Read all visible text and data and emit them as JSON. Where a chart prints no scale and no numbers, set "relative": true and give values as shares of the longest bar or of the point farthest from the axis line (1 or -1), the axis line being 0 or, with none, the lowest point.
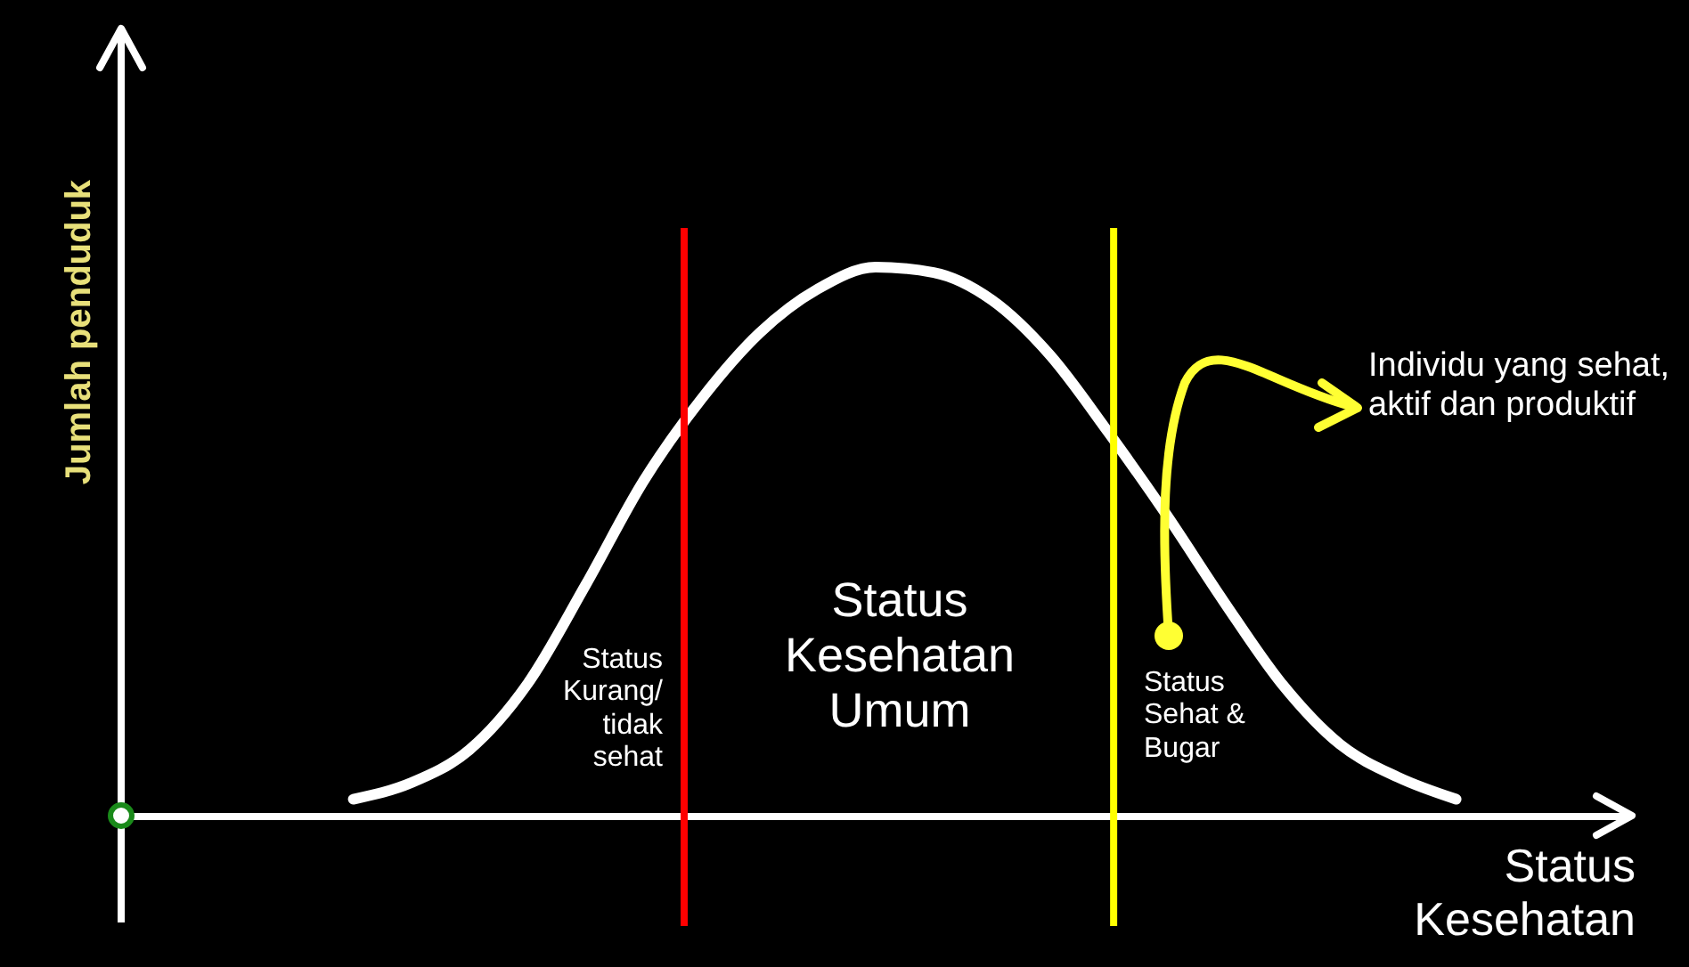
{
  "chart_data": {
    "type": "line",
    "relative": true,
    "xlabel": "Status Kesehatan",
    "ylabel": "Jumlah penduduk",
    "categories": [
      null,
      null,
      null,
      null,
      null,
      null,
      null,
      null,
      null,
      null,
      null,
      null,
      null,
      null,
      null,
      null,
      null,
      null,
      null,
      null,
      null,
      null,
      null,
      null,
      null,
      null,
      null
    ],
    "series": [
      {
        "color": "#ffffff",
        "values": [
          null,
          null,
          null,
          null,
          0.03,
          0.06,
          0.12,
          0.24,
          0.42,
          0.61,
          0.76,
          0.88,
          0.96,
          1,
          0.99,
          0.94,
          0.84,
          0.7,
          0.55,
          0.39,
          0.24,
          0.13,
          0.07,
          0.03,
          null,
          null,
          null
        ]
      }
    ],
    "grid": false,
    "marker": "none",
    "line_style": "solid",
    "annotations": [
      "Status Kurang/ tidak sehat",
      "Status Kesehatan Umum",
      "Status Sehat & Bugar",
      "Individu yang sehat, aktif dan produktif"
    ]
  }
}
